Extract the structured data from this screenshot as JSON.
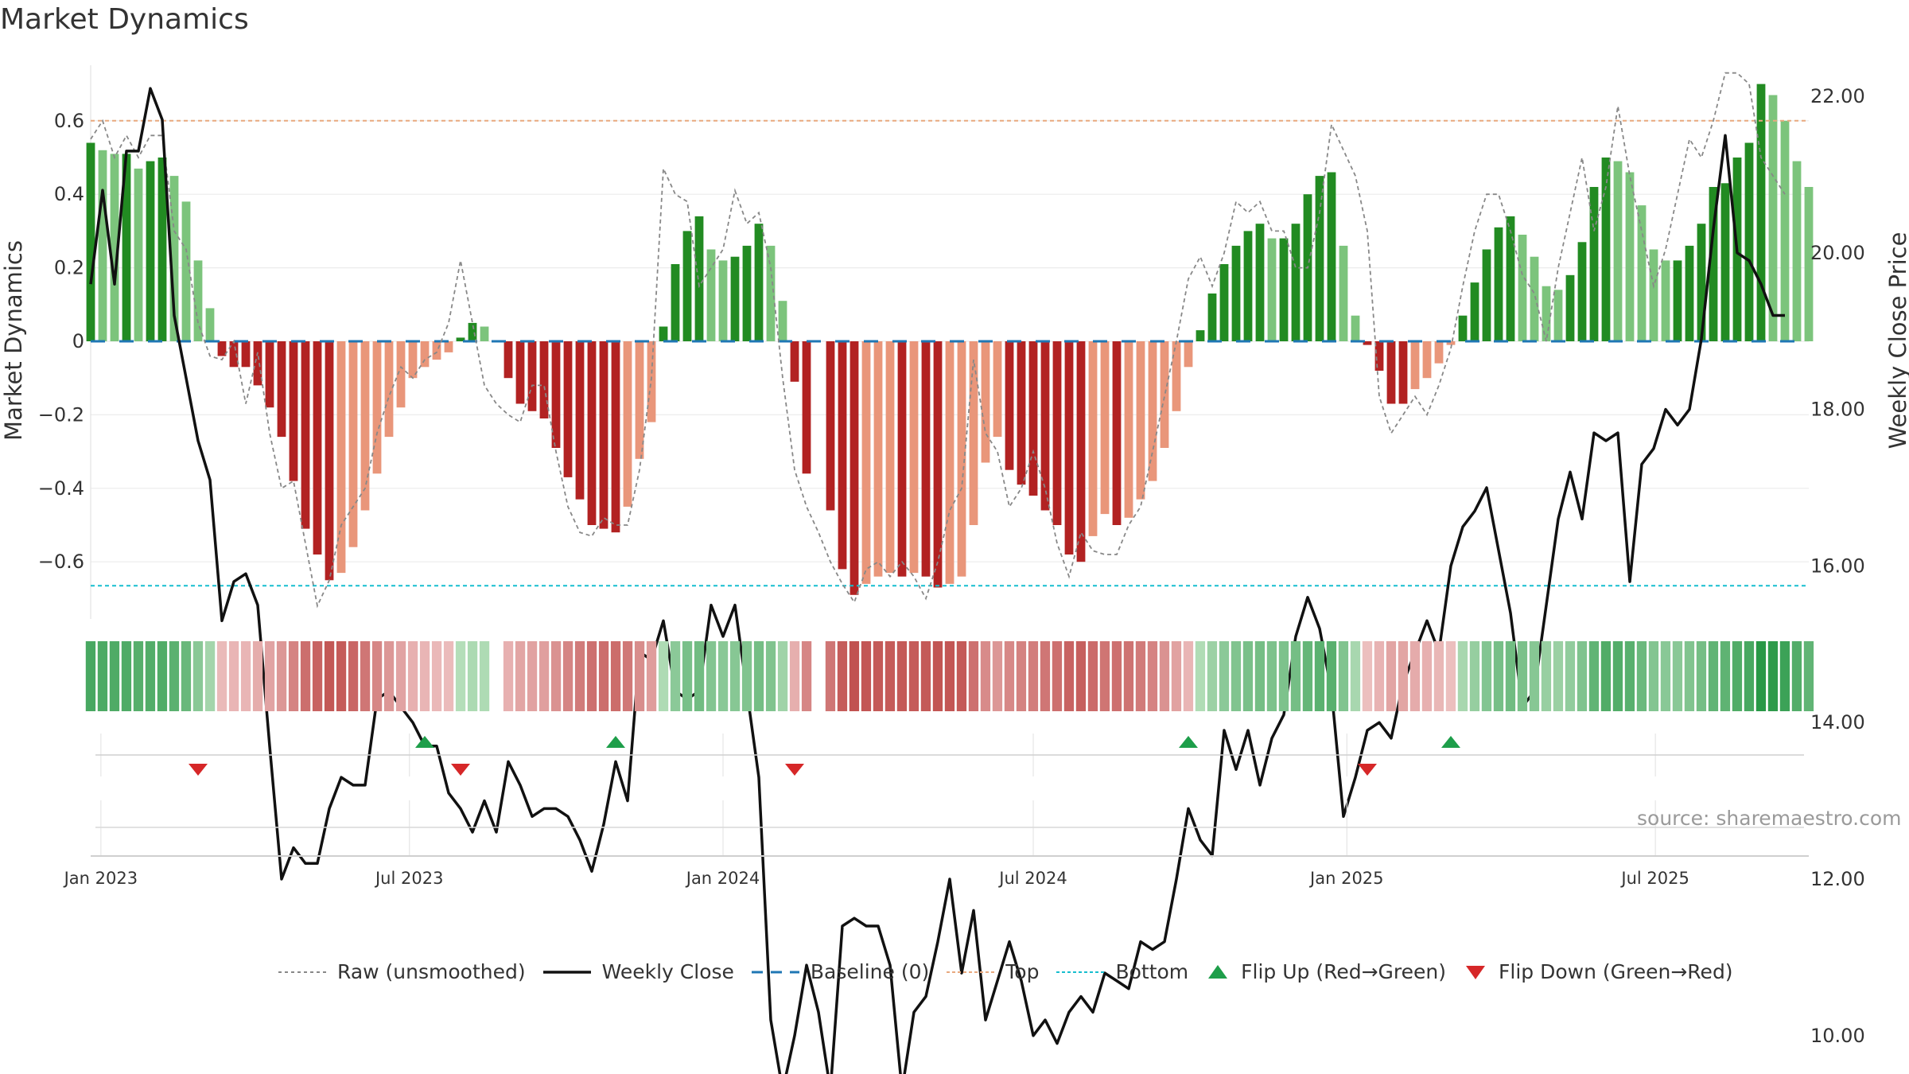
{
  "title": "Market Dynamics",
  "source": "source: sharemaestro.com",
  "colors": {
    "green_dark": "#228B22",
    "green_light": "#7CC47C",
    "red_dark": "#B22222",
    "red_light": "#E9967A",
    "close": "#111111",
    "raw": "#888888",
    "baseline": "#1f77b4",
    "top": "#E8A97E",
    "bottom": "#17BECF",
    "flip_up": "#1E9E4A",
    "flip_down": "#D62728"
  },
  "legend": [
    {
      "label": "Raw (unsmoothed)",
      "kind": "raw"
    },
    {
      "label": "Weekly Close",
      "kind": "close"
    },
    {
      "label": "Baseline (0)",
      "kind": "baseline"
    },
    {
      "label": "Top",
      "kind": "top"
    },
    {
      "label": "Bottom",
      "kind": "bottom"
    },
    {
      "label": "Flip Up (Red→Green)",
      "kind": "flip_up"
    },
    {
      "label": "Flip Down (Green→Red)",
      "kind": "flip_down"
    }
  ],
  "chart_data": {
    "type": "bar",
    "title": "Market Dynamics",
    "ylabel_left": "Market Dynamics",
    "ylabel_right": "Weekly Close Price",
    "ylim_left": [
      -0.75,
      0.75
    ],
    "ylim_right": [
      8.5,
      23.5
    ],
    "yticks_left": [
      {
        "v": 0.6,
        "t": "0.6"
      },
      {
        "v": 0.4,
        "t": "0.4"
      },
      {
        "v": 0.2,
        "t": "0.2"
      },
      {
        "v": 0,
        "t": "0"
      },
      {
        "v": -0.2,
        "t": "−0.2"
      },
      {
        "v": -0.4,
        "t": "−0.4"
      },
      {
        "v": -0.6,
        "t": "−0.6"
      }
    ],
    "yticks_right": [
      "22.00",
      "20.00",
      "18.00",
      "16.00",
      "14.00",
      "12.00",
      "10.00"
    ],
    "x_ticks": [
      {
        "date": "2023-01-01",
        "label": "Jan 2023"
      },
      {
        "date": "2023-07-01",
        "label": "Jul 2023"
      },
      {
        "date": "2024-01-01",
        "label": "Jan 2024"
      },
      {
        "date": "2024-07-01",
        "label": "Jul 2024"
      },
      {
        "date": "2025-01-01",
        "label": "Jan 2025"
      },
      {
        "date": "2025-07-01",
        "label": "Jul 2025"
      }
    ],
    "x_range": [
      "2022-12-26",
      "2025-09-29"
    ],
    "start_date": "2022-12-26",
    "top_level": 0.6,
    "bottom_level": -0.665,
    "baseline": 0,
    "momentum": [
      0.54,
      0.52,
      0.51,
      0.51,
      0.47,
      0.49,
      0.5,
      0.45,
      0.38,
      0.22,
      0.09,
      -0.04,
      -0.07,
      -0.07,
      -0.12,
      -0.18,
      -0.26,
      -0.38,
      -0.51,
      -0.58,
      -0.65,
      -0.63,
      -0.56,
      -0.46,
      -0.36,
      -0.26,
      -0.18,
      -0.1,
      -0.07,
      -0.05,
      -0.03,
      0.01,
      0.05,
      0.04,
      0,
      -0.1,
      -0.17,
      -0.19,
      -0.21,
      -0.29,
      -0.37,
      -0.43,
      -0.5,
      -0.51,
      -0.52,
      -0.45,
      -0.32,
      -0.22,
      0.04,
      0.21,
      0.3,
      0.34,
      0.25,
      0.22,
      0.23,
      0.26,
      0.32,
      0.26,
      0.11,
      -0.11,
      -0.36,
      0,
      -0.46,
      -0.62,
      -0.69,
      -0.66,
      -0.64,
      -0.63,
      -0.64,
      -0.63,
      -0.64,
      -0.67,
      -0.66,
      -0.64,
      -0.5,
      -0.33,
      -0.26,
      -0.35,
      -0.39,
      -0.42,
      -0.46,
      -0.5,
      -0.58,
      -0.6,
      -0.53,
      -0.47,
      -0.5,
      -0.48,
      -0.43,
      -0.38,
      -0.29,
      -0.19,
      -0.07,
      0.03,
      0.13,
      0.21,
      0.26,
      0.3,
      0.32,
      0.28,
      0.28,
      0.32,
      0.4,
      0.45,
      0.46,
      0.26,
      0.07,
      -0.01,
      -0.08,
      -0.17,
      -0.17,
      -0.13,
      -0.1,
      -0.06,
      -0.01,
      0.07,
      0.16,
      0.25,
      0.31,
      0.34,
      0.29,
      0.23,
      0.15,
      0.14,
      0.18,
      0.27,
      0.42,
      0.5,
      0.49,
      0.46,
      0.37,
      0.25,
      0.22,
      0.22,
      0.26,
      0.32,
      0.42,
      0.43,
      0.5,
      0.54,
      0.7,
      0.67,
      0.6,
      0.49,
      0.42
    ],
    "weekly_close": [
      19.6,
      20.8,
      19.6,
      21.3,
      21.3,
      22.1,
      21.7,
      19.2,
      18.4,
      17.6,
      17.1,
      15.3,
      15.8,
      15.9,
      15.5,
      13.7,
      12.0,
      12.4,
      12.2,
      12.2,
      12.9,
      13.3,
      13.2,
      13.2,
      14.3,
      14.4,
      14.2,
      14.0,
      13.7,
      13.7,
      13.1,
      12.9,
      12.6,
      13.0,
      12.6,
      13.5,
      13.2,
      12.8,
      12.9,
      12.9,
      12.8,
      12.5,
      12.1,
      12.7,
      13.5,
      13.0,
      14.9,
      14.8,
      15.3,
      14.4,
      14.3,
      14.4,
      15.5,
      15.1,
      15.5,
      14.4,
      13.3,
      10.2,
      9.3,
      10.0,
      10.9,
      10.3,
      9.3,
      11.4,
      11.5,
      11.4,
      11.4,
      10.9,
      9.3,
      10.3,
      10.5,
      11.2,
      12.0,
      10.8,
      11.6,
      10.2,
      10.7,
      11.2,
      10.7,
      10.0,
      10.2,
      9.9,
      10.3,
      10.5,
      10.3,
      10.8,
      10.7,
      10.6,
      11.2,
      11.1,
      11.2,
      12.0,
      12.9,
      12.5,
      12.3,
      13.9,
      13.4,
      13.9,
      13.2,
      13.8,
      14.1,
      15.1,
      15.6,
      15.2,
      14.4,
      12.8,
      13.3,
      13.9,
      14.0,
      13.8,
      14.5,
      14.9,
      15.3,
      14.9,
      16.0,
      16.5,
      16.7,
      17.0,
      16.2,
      15.4,
      14.2,
      14.4,
      15.5,
      16.6,
      17.2,
      16.6,
      17.7,
      17.6,
      17.7,
      15.8,
      17.3,
      17.5,
      18.0,
      17.8,
      18.0,
      18.9,
      20.3,
      21.5,
      20.0,
      19.9,
      19.6,
      19.2,
      19.2
    ],
    "raw": [
      0.55,
      0.6,
      0.5,
      0.56,
      0.5,
      0.56,
      0.56,
      0.3,
      0.25,
      0.05,
      -0.04,
      -0.05,
      0,
      -0.17,
      -0.03,
      -0.25,
      -0.4,
      -0.38,
      -0.55,
      -0.72,
      -0.65,
      -0.5,
      -0.45,
      -0.4,
      -0.25,
      -0.15,
      -0.07,
      -0.1,
      -0.05,
      -0.03,
      0.05,
      0.22,
      0.05,
      -0.12,
      -0.17,
      -0.2,
      -0.22,
      -0.12,
      -0.12,
      -0.3,
      -0.45,
      -0.52,
      -0.53,
      -0.48,
      -0.5,
      -0.5,
      -0.35,
      -0.1,
      0.47,
      0.4,
      0.38,
      0.15,
      0.2,
      0.25,
      0.41,
      0.32,
      0.35,
      0.2,
      -0.1,
      -0.35,
      -0.45,
      -0.52,
      -0.6,
      -0.66,
      -0.71,
      -0.62,
      -0.6,
      -0.64,
      -0.6,
      -0.64,
      -0.7,
      -0.6,
      -0.46,
      -0.4,
      -0.05,
      -0.25,
      -0.3,
      -0.45,
      -0.4,
      -0.3,
      -0.4,
      -0.55,
      -0.64,
      -0.52,
      -0.57,
      -0.58,
      -0.58,
      -0.5,
      -0.45,
      -0.3,
      -0.15,
      0,
      0.17,
      0.23,
      0.15,
      0.24,
      0.38,
      0.35,
      0.38,
      0.3,
      0.3,
      0.2,
      0.2,
      0.35,
      0.59,
      0.52,
      0.45,
      0.3,
      -0.15,
      -0.25,
      -0.2,
      -0.15,
      -0.2,
      -0.12,
      -0.02,
      0.15,
      0.3,
      0.4,
      0.4,
      0.3,
      0.18,
      0.13,
      0,
      0.2,
      0.35,
      0.5,
      0.3,
      0.42,
      0.64,
      0.45,
      0.3,
      0.15,
      0.25,
      0.4,
      0.55,
      0.5,
      0.6,
      0.73,
      0.73,
      0.7,
      0.5,
      0.45,
      0.4
    ],
    "strip_values": [
      0.54,
      0.52,
      0.51,
      0.51,
      0.47,
      0.49,
      0.5,
      0.45,
      0.38,
      0.22,
      0.09,
      -0.04,
      -0.07,
      -0.07,
      -0.12,
      -0.18,
      -0.26,
      -0.38,
      -0.51,
      -0.58,
      -0.65,
      -0.63,
      -0.56,
      -0.46,
      -0.36,
      -0.26,
      -0.18,
      -0.1,
      -0.07,
      -0.05,
      -0.03,
      0.01,
      0.05,
      0.04,
      0,
      -0.1,
      -0.17,
      -0.19,
      -0.21,
      -0.29,
      -0.37,
      -0.43,
      -0.5,
      -0.51,
      -0.52,
      -0.45,
      -0.32,
      -0.22,
      0.04,
      0.21,
      0.3,
      0.34,
      0.25,
      0.22,
      0.23,
      0.26,
      0.32,
      0.26,
      0.11,
      -0.11,
      -0.36,
      0,
      -0.46,
      -0.62,
      -0.69,
      -0.66,
      -0.64,
      -0.63,
      -0.64,
      -0.63,
      -0.64,
      -0.67,
      -0.66,
      -0.64,
      -0.5,
      -0.33,
      -0.26,
      -0.35,
      -0.39,
      -0.42,
      -0.46,
      -0.5,
      -0.58,
      -0.6,
      -0.53,
      -0.47,
      -0.5,
      -0.48,
      -0.43,
      -0.38,
      -0.29,
      -0.19,
      -0.07,
      0.03,
      0.13,
      0.21,
      0.26,
      0.3,
      0.32,
      0.28,
      0.28,
      0.32,
      0.4,
      0.45,
      0.46,
      0.26,
      0.07,
      -0.01,
      -0.08,
      -0.17,
      -0.17,
      -0.13,
      -0.1,
      -0.06,
      -0.01,
      0.07,
      0.16,
      0.25,
      0.31,
      0.34,
      0.29,
      0.23,
      0.15,
      0.14,
      0.18,
      0.27,
      0.42,
      0.5,
      0.49,
      0.46,
      0.37,
      0.25,
      0.22,
      0.22,
      0.26,
      0.32,
      0.42,
      0.43,
      0.5,
      0.54,
      0.7,
      0.67,
      0.6,
      0.49,
      0.42
    ],
    "flips_up": [
      "2023-07-10",
      "2023-10-30",
      "2024-09-30",
      "2025-03-03"
    ],
    "flips_down": [
      "2023-02-27",
      "2023-07-31",
      "2024-02-12",
      "2025-01-13"
    ]
  }
}
